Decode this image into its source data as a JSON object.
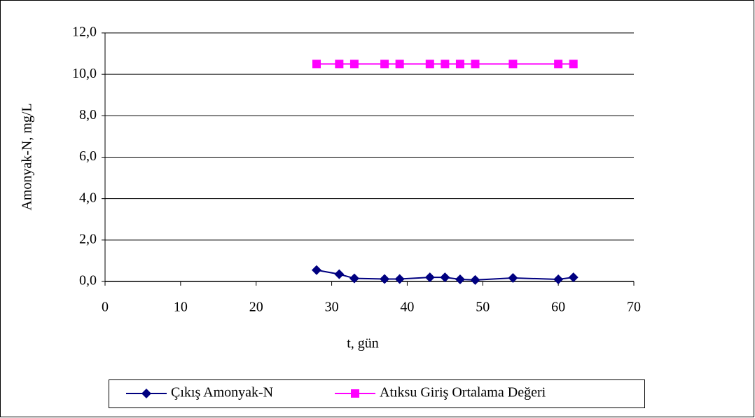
{
  "chart_data": {
    "type": "line",
    "x": [
      28,
      31,
      33,
      37,
      39,
      43,
      45,
      47,
      49,
      54,
      60,
      62
    ],
    "series": [
      {
        "name": "Çıkış Amonyak-N",
        "color": "#000080",
        "marker": "diamond",
        "values": [
          0.55,
          0.35,
          0.15,
          0.12,
          0.12,
          0.2,
          0.2,
          0.1,
          0.07,
          0.17,
          0.1,
          0.2
        ]
      },
      {
        "name": "Atıksu Giriş Ortalama Değeri",
        "color": "#ff00ff",
        "marker": "square",
        "values": [
          10.5,
          10.5,
          10.5,
          10.5,
          10.5,
          10.5,
          10.5,
          10.5,
          10.5,
          10.5,
          10.5,
          10.5
        ]
      }
    ],
    "xlabel": "t, gün",
    "ylabel": "Amonyak-N, mg/L",
    "xlim": [
      0,
      70
    ],
    "xticks": [
      0,
      10,
      20,
      30,
      40,
      50,
      60,
      70
    ],
    "ylim": [
      0,
      12
    ],
    "yticks": [
      {
        "value": 0,
        "label": "0,0"
      },
      {
        "value": 2,
        "label": "2,0"
      },
      {
        "value": 4,
        "label": "4,0"
      },
      {
        "value": 6,
        "label": "6,0"
      },
      {
        "value": 8,
        "label": "8,0"
      },
      {
        "value": 10,
        "label": "10,0"
      },
      {
        "value": 12,
        "label": "12,0"
      }
    ],
    "grid": true,
    "legend": "bottom"
  }
}
